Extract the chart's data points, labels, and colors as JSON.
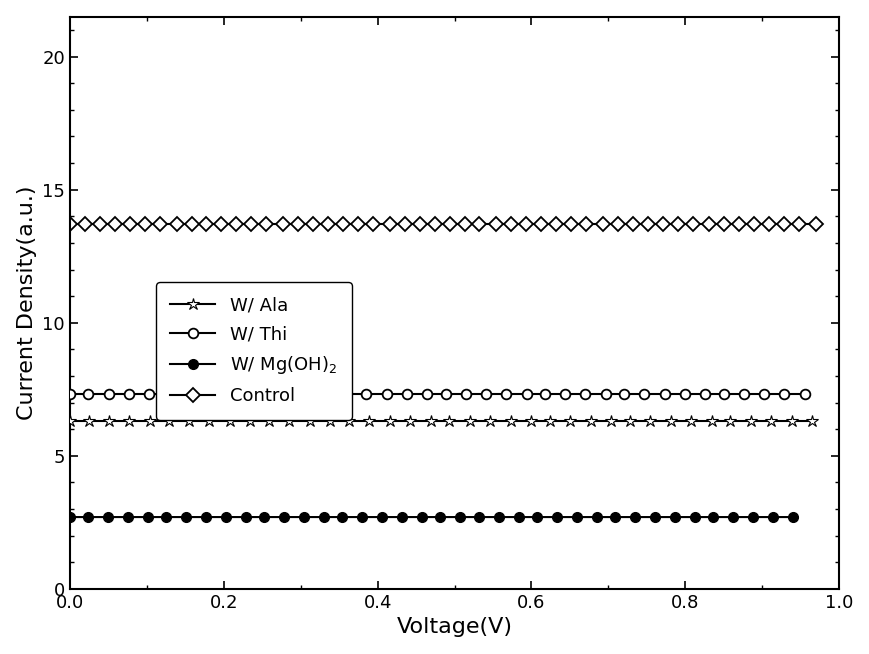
{
  "xlabel": "Voltage(V)",
  "ylabel": "Current Density(a.u.)",
  "xlim": [
    0.0,
    1.0
  ],
  "ylim": [
    0.0,
    21.5
  ],
  "xticks": [
    0.0,
    0.2,
    0.4,
    0.6,
    0.8,
    1.0
  ],
  "yticks": [
    0,
    5,
    10,
    15,
    20
  ],
  "background_color": "#ffffff",
  "curves": {
    "ala": {
      "Jsc": 20.15,
      "Voc": 0.935,
      "n": 1.3,
      "Rs": 0.5,
      "Rsh": 2000,
      "Vmax": 0.965,
      "n_markers": 38
    },
    "thi": {
      "Jsc": 19.8,
      "Voc": 0.928,
      "n": 1.4,
      "Rs": 0.6,
      "Rsh": 2000,
      "Vmax": 0.955,
      "n_markers": 38
    },
    "mgoh2": {
      "Jsc": 19.9,
      "Voc": 0.91,
      "n": 1.3,
      "Rs": 0.4,
      "Rsh": 2000,
      "Vmax": 0.94,
      "n_markers": 38
    },
    "control": {
      "Jsc": 17.3,
      "Voc": 0.96,
      "n": 2.2,
      "Rs": 3.5,
      "Rsh": 400,
      "Vmax": 0.97,
      "n_markers": 50
    }
  }
}
